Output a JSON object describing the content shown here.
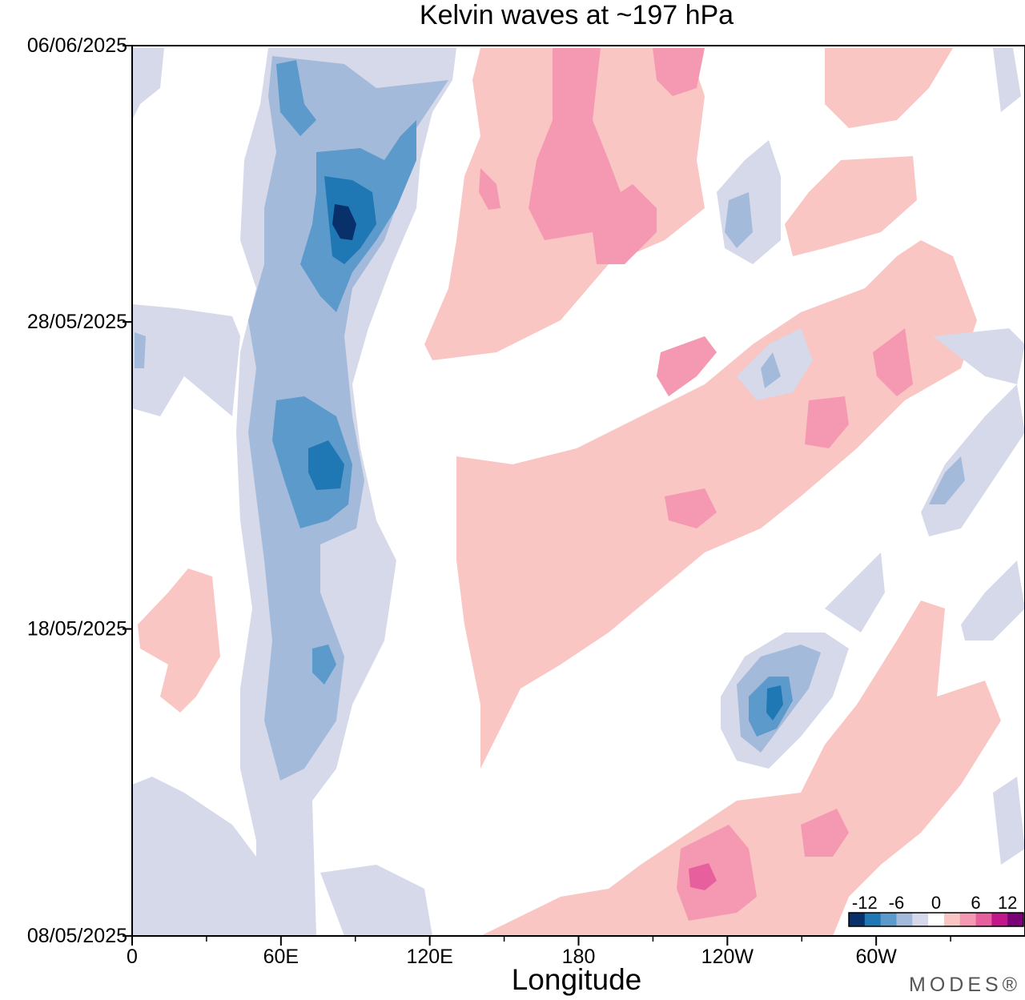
{
  "chart_data": {
    "type": "heatmap",
    "title": "Kelvin waves at ~197 hPa",
    "xlabel": "Longitude",
    "ylabel": "",
    "x_ticks": [
      "0",
      "60E",
      "120E",
      "180",
      "120W",
      "60W"
    ],
    "y_ticks": [
      "08/05/2025",
      "18/05/2025",
      "28/05/2025",
      "06/06/2025"
    ],
    "colorbar": {
      "tick_labels": [
        "-12",
        "-6",
        "0",
        "6",
        "12"
      ],
      "levels": [
        -15,
        -12,
        -9,
        -6,
        -3,
        3,
        6,
        9,
        12,
        15
      ],
      "colors": [
        "#08306b",
        "#1f78b4",
        "#5b9acb",
        "#a4badb",
        "#d6d9ea",
        "#ffffff",
        "#f9c6c3",
        "#f598b2",
        "#e85f9e",
        "#c2178a",
        "#7a0177"
      ]
    },
    "features": [
      {
        "sign": "negative",
        "max_level": -12,
        "lon_start": 85,
        "lon_end": 62,
        "date_start": "08/05/2025",
        "date_end": "06/06/2025"
      },
      {
        "sign": "positive",
        "max_level": 9,
        "lon_start": 160,
        "lon_end": 250,
        "date_start": "16/05/2025",
        "date_end": "06/06/2025"
      },
      {
        "sign": "negative",
        "max_level": -9,
        "lon_start": 238,
        "lon_end": 230,
        "date_start": "12/05/2025",
        "date_end": "17/05/2025"
      },
      {
        "sign": "positive",
        "max_level": 12,
        "lon_start": 222,
        "lon_end": 320,
        "date_start": "08/05/2025",
        "date_end": "16/05/2025"
      }
    ]
  },
  "watermark": "MODES®"
}
